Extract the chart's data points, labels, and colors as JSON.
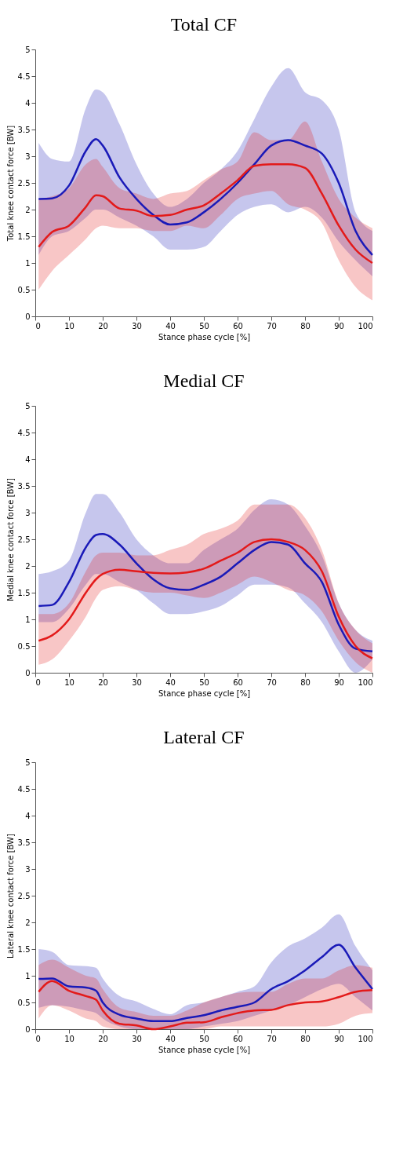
{
  "chart_data": [
    {
      "type": "line",
      "title": "Total CF",
      "xlabel": "Stance phase cycle [%]",
      "ylabel": "Total knee contact force [BW]",
      "xlim": [
        0,
        100
      ],
      "xticks": [
        0,
        10,
        20,
        30,
        40,
        50,
        60,
        70,
        80,
        90,
        100
      ],
      "ylim": [
        0,
        5
      ],
      "yticks": [
        0,
        0.5,
        1,
        1.5,
        2,
        2.5,
        3,
        3.5,
        4,
        4.5,
        5
      ],
      "x": [
        1,
        5,
        10,
        15,
        18,
        20,
        25,
        30,
        35,
        40,
        45,
        50,
        55,
        60,
        65,
        70,
        75,
        80,
        85,
        90,
        95,
        100
      ],
      "series": [
        {
          "color": "#1a1ab8",
          "values": [
            2.2,
            2.21,
            2.45,
            3.1,
            3.32,
            3.2,
            2.6,
            2.2,
            1.9,
            1.72,
            1.76,
            1.95,
            2.2,
            2.5,
            2.85,
            3.2,
            3.3,
            3.2,
            3.05,
            2.5,
            1.6,
            1.15
          ],
          "upper": [
            3.25,
            2.95,
            2.9,
            3.9,
            4.25,
            4.2,
            3.6,
            2.85,
            2.3,
            2.05,
            2.2,
            2.5,
            2.75,
            3.1,
            3.7,
            4.3,
            4.65,
            4.2,
            4.05,
            3.5,
            1.95,
            1.6
          ],
          "lower": [
            1.15,
            1.5,
            1.6,
            1.85,
            2.0,
            2.0,
            1.85,
            1.7,
            1.5,
            1.25,
            1.25,
            1.3,
            1.6,
            1.9,
            2.05,
            2.1,
            1.95,
            2.05,
            1.85,
            1.4,
            1.05,
            0.75
          ]
        },
        {
          "color": "#e31a1a",
          "values": [
            1.3,
            1.58,
            1.7,
            2.05,
            2.27,
            2.25,
            2.02,
            1.98,
            1.88,
            1.9,
            2.0,
            2.08,
            2.3,
            2.55,
            2.82,
            2.85,
            2.85,
            2.78,
            2.3,
            1.7,
            1.25,
            1.0
          ],
          "upper": [
            2.2,
            2.25,
            2.4,
            2.85,
            2.95,
            2.8,
            2.4,
            2.3,
            2.2,
            2.3,
            2.35,
            2.55,
            2.75,
            2.9,
            3.45,
            3.3,
            3.3,
            3.65,
            2.9,
            2.2,
            1.85,
            1.65
          ],
          "lower": [
            0.5,
            0.85,
            1.15,
            1.45,
            1.65,
            1.7,
            1.65,
            1.65,
            1.6,
            1.6,
            1.7,
            1.65,
            1.9,
            2.2,
            2.3,
            2.35,
            2.1,
            2.0,
            1.75,
            1.05,
            0.55,
            0.3
          ]
        }
      ]
    },
    {
      "type": "line",
      "title": "Medial CF",
      "xlabel": "Stance phase cycle [%]",
      "ylabel": "Medial knee contact force [BW]",
      "xlim": [
        0,
        100
      ],
      "xticks": [
        0,
        10,
        20,
        30,
        40,
        50,
        60,
        70,
        80,
        90,
        100
      ],
      "ylim": [
        0,
        5
      ],
      "yticks": [
        0,
        0.5,
        1,
        1.5,
        2,
        2.5,
        3,
        3.5,
        4,
        4.5,
        5
      ],
      "x": [
        1,
        5,
        10,
        15,
        18,
        20,
        25,
        30,
        35,
        40,
        45,
        50,
        55,
        60,
        65,
        70,
        75,
        80,
        85,
        90,
        95,
        100
      ],
      "series": [
        {
          "color": "#1a1ab8",
          "values": [
            1.25,
            1.27,
            1.7,
            2.35,
            2.58,
            2.6,
            2.4,
            2.05,
            1.75,
            1.58,
            1.55,
            1.65,
            1.8,
            2.05,
            2.3,
            2.45,
            2.4,
            2.05,
            1.7,
            0.9,
            0.45,
            0.4
          ],
          "upper": [
            1.85,
            1.9,
            2.1,
            3.0,
            3.35,
            3.35,
            3.0,
            2.5,
            2.2,
            2.05,
            2.05,
            2.3,
            2.5,
            2.7,
            3.05,
            3.25,
            3.15,
            2.75,
            2.2,
            1.3,
            0.8,
            0.6
          ],
          "lower": [
            0.95,
            0.95,
            1.2,
            1.65,
            1.85,
            1.85,
            1.7,
            1.55,
            1.3,
            1.1,
            1.1,
            1.15,
            1.25,
            1.45,
            1.65,
            1.65,
            1.6,
            1.3,
            0.95,
            0.4,
            0.0,
            0.25
          ]
        },
        {
          "color": "#e31a1a",
          "values": [
            0.6,
            0.7,
            1.0,
            1.5,
            1.75,
            1.85,
            1.93,
            1.9,
            1.87,
            1.86,
            1.88,
            1.95,
            2.1,
            2.25,
            2.45,
            2.5,
            2.45,
            2.3,
            1.9,
            1.05,
            0.5,
            0.27
          ],
          "upper": [
            1.1,
            1.1,
            1.3,
            1.9,
            2.2,
            2.25,
            2.25,
            2.2,
            2.2,
            2.3,
            2.4,
            2.6,
            2.7,
            2.85,
            3.15,
            3.15,
            3.15,
            2.9,
            2.3,
            1.3,
            0.8,
            0.55
          ],
          "lower": [
            0.15,
            0.25,
            0.6,
            1.05,
            1.4,
            1.55,
            1.62,
            1.55,
            1.5,
            1.5,
            1.45,
            1.4,
            1.5,
            1.65,
            1.8,
            1.7,
            1.55,
            1.45,
            1.15,
            0.6,
            0.2,
            0.0
          ]
        }
      ]
    },
    {
      "type": "line",
      "title": "Lateral CF",
      "xlabel": "Stance phase cycle [%]",
      "ylabel": "Lateral knee contact force [BW]",
      "xlim": [
        0,
        100
      ],
      "xticks": [
        0,
        10,
        20,
        30,
        40,
        50,
        60,
        70,
        80,
        90,
        100
      ],
      "ylim": [
        0,
        5
      ],
      "yticks": [
        0,
        0.5,
        1,
        1.5,
        2,
        2.5,
        3,
        3.5,
        4,
        4.5,
        5
      ],
      "x": [
        1,
        5,
        10,
        15,
        18,
        20,
        25,
        30,
        35,
        40,
        45,
        50,
        55,
        60,
        65,
        70,
        75,
        80,
        85,
        90,
        95,
        100
      ],
      "series": [
        {
          "color": "#1a1ab8",
          "values": [
            0.94,
            0.95,
            0.8,
            0.78,
            0.72,
            0.5,
            0.27,
            0.2,
            0.15,
            0.15,
            0.21,
            0.26,
            0.35,
            0.42,
            0.5,
            0.75,
            0.9,
            1.1,
            1.35,
            1.58,
            1.15,
            0.75
          ],
          "upper": [
            1.5,
            1.45,
            1.2,
            1.18,
            1.15,
            0.95,
            0.62,
            0.52,
            0.38,
            0.28,
            0.45,
            0.5,
            0.6,
            0.7,
            0.8,
            1.25,
            1.55,
            1.7,
            1.9,
            2.15,
            1.55,
            1.1
          ],
          "lower": [
            0.4,
            0.45,
            0.42,
            0.35,
            0.3,
            0.2,
            0.05,
            0.0,
            0.0,
            0.0,
            0.0,
            0.05,
            0.1,
            0.15,
            0.25,
            0.35,
            0.45,
            0.6,
            0.75,
            0.85,
            0.6,
            0.35
          ]
        },
        {
          "color": "#e31a1a",
          "values": [
            0.7,
            0.9,
            0.72,
            0.62,
            0.55,
            0.35,
            0.1,
            0.07,
            0.0,
            0.05,
            0.12,
            0.13,
            0.22,
            0.3,
            0.35,
            0.36,
            0.45,
            0.5,
            0.52,
            0.6,
            0.7,
            0.73
          ],
          "upper": [
            1.2,
            1.3,
            1.15,
            1.0,
            0.95,
            0.75,
            0.4,
            0.32,
            0.25,
            0.25,
            0.35,
            0.5,
            0.6,
            0.68,
            0.7,
            0.7,
            0.85,
            0.95,
            0.95,
            1.1,
            1.2,
            1.15
          ],
          "lower": [
            0.2,
            0.45,
            0.35,
            0.2,
            0.15,
            0.05,
            0.0,
            0.0,
            0.0,
            0.0,
            0.0,
            0.0,
            0.05,
            0.05,
            0.05,
            0.05,
            0.05,
            0.05,
            0.05,
            0.1,
            0.25,
            0.3
          ]
        }
      ]
    }
  ]
}
